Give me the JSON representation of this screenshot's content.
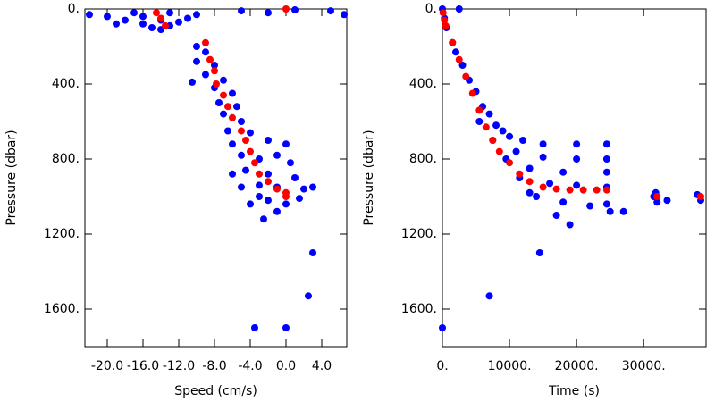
{
  "chart_data": [
    {
      "type": "scatter",
      "x_label": "Speed (cm/s)",
      "y_label": "Pressure (dbar)",
      "xlim": [
        -22.5,
        6.8
      ],
      "ylim": [
        1800,
        0
      ],
      "xticks": [
        {
          "value": -20,
          "label": "-20.0"
        },
        {
          "value": -16,
          "label": "-16.0"
        },
        {
          "value": -12,
          "label": "-12.0"
        },
        {
          "value": -8,
          "label": "-8.0"
        },
        {
          "value": -4,
          "label": "-4.0"
        },
        {
          "value": 0,
          "label": "0.0"
        },
        {
          "value": 4,
          "label": "4.0"
        }
      ],
      "yticks": [
        {
          "value": 0,
          "label": "0."
        },
        {
          "value": 400,
          "label": "400."
        },
        {
          "value": 800,
          "label": "800."
        },
        {
          "value": 1200,
          "label": "1200."
        },
        {
          "value": 1600,
          "label": "1600."
        }
      ],
      "grid": false,
      "series": [
        {
          "color": "#0000ff",
          "x": [
            -22,
            -20,
            -18,
            -16,
            -15,
            -14,
            -13,
            -12,
            -11,
            -17,
            -13,
            -10,
            -5,
            -2,
            1,
            5,
            6.5,
            -19,
            -14,
            -16,
            -10,
            -9,
            -10,
            -8,
            -9,
            -7,
            -10.5,
            -8,
            -6,
            -7.5,
            -5.5,
            -7,
            -5,
            -6.5,
            -4,
            -6,
            -2,
            0,
            -5,
            -3,
            -1,
            0.5,
            -4.5,
            -2,
            -6,
            -3,
            -1,
            1,
            2,
            3,
            -2,
            0,
            -4,
            -1,
            -2.5,
            1.5,
            -5,
            -3,
            3,
            2.5,
            -3.5,
            0
          ],
          "y": [
            30,
            40,
            60,
            80,
            100,
            110,
            90,
            70,
            50,
            20,
            20,
            30,
            10,
            20,
            5,
            10,
            30,
            80,
            60,
            40,
            200,
            230,
            280,
            300,
            350,
            380,
            390,
            420,
            450,
            500,
            520,
            560,
            600,
            650,
            660,
            720,
            700,
            720,
            780,
            800,
            780,
            820,
            860,
            880,
            880,
            940,
            950,
            900,
            960,
            950,
            1020,
            1040,
            1040,
            1080,
            1120,
            1010,
            950,
            1000,
            1300,
            1530,
            1700,
            1700
          ]
        },
        {
          "color": "#ff0000",
          "x": [
            -14.5,
            -14,
            -13.5,
            -9,
            -8.5,
            -8,
            -7.8,
            -7,
            -6.5,
            -6,
            -5,
            -4.5,
            -4,
            -3.5,
            -3,
            -2,
            -1,
            0,
            0,
            0
          ],
          "y": [
            20,
            50,
            90,
            180,
            270,
            330,
            400,
            460,
            520,
            580,
            650,
            700,
            760,
            820,
            880,
            920,
            960,
            980,
            1000,
            0
          ]
        }
      ]
    },
    {
      "type": "scatter",
      "x_label": "Time (s)",
      "y_label": "Pressure (dbar)",
      "xlim": [
        0,
        39300
      ],
      "ylim": [
        1800,
        0
      ],
      "xticks": [
        {
          "value": 0,
          "label": "0."
        },
        {
          "value": 10000,
          "label": "10000."
        },
        {
          "value": 20000,
          "label": "20000."
        },
        {
          "value": 30000,
          "label": "30000."
        }
      ],
      "yticks": [
        {
          "value": 0,
          "label": "0."
        },
        {
          "value": 400,
          "label": "400."
        },
        {
          "value": 800,
          "label": "800."
        },
        {
          "value": 1200,
          "label": "1200."
        },
        {
          "value": 1600,
          "label": "1600."
        }
      ],
      "grid": false,
      "series": [
        {
          "color": "#0000ff",
          "x": [
            0,
            300,
            600,
            2500,
            1500,
            2000,
            3000,
            4000,
            5000,
            6000,
            7000,
            8000,
            9000,
            10000,
            12000,
            15000,
            20000,
            24500,
            11000,
            15000,
            20000,
            24500,
            13000,
            18000,
            24500,
            16000,
            20000,
            24500,
            14000,
            18000,
            22000,
            24500,
            17000,
            19000,
            25000,
            27000,
            31500,
            32000,
            31800,
            33500,
            38000,
            38500,
            5500,
            7500,
            9500,
            11500,
            13000,
            14500,
            7000,
            0
          ],
          "y": [
            0,
            50,
            100,
            0,
            180,
            230,
            300,
            380,
            440,
            520,
            560,
            620,
            650,
            680,
            700,
            720,
            720,
            720,
            760,
            790,
            800,
            800,
            850,
            870,
            870,
            930,
            940,
            950,
            1000,
            1030,
            1050,
            1040,
            1100,
            1150,
            1080,
            1080,
            1000,
            1030,
            980,
            1020,
            990,
            1020,
            600,
            700,
            800,
            900,
            980,
            1300,
            1530,
            1700
          ]
        },
        {
          "color": "#ff0000",
          "x": [
            100,
            300,
            500,
            1500,
            2500,
            3500,
            4500,
            5500,
            6500,
            7500,
            8500,
            10000,
            11500,
            13000,
            15000,
            17000,
            19000,
            21000,
            23000,
            24500,
            32000,
            38500
          ],
          "y": [
            20,
            60,
            90,
            180,
            270,
            360,
            450,
            540,
            630,
            700,
            760,
            820,
            880,
            920,
            950,
            960,
            965,
            965,
            965,
            965,
            1000,
            1000
          ]
        }
      ]
    }
  ]
}
